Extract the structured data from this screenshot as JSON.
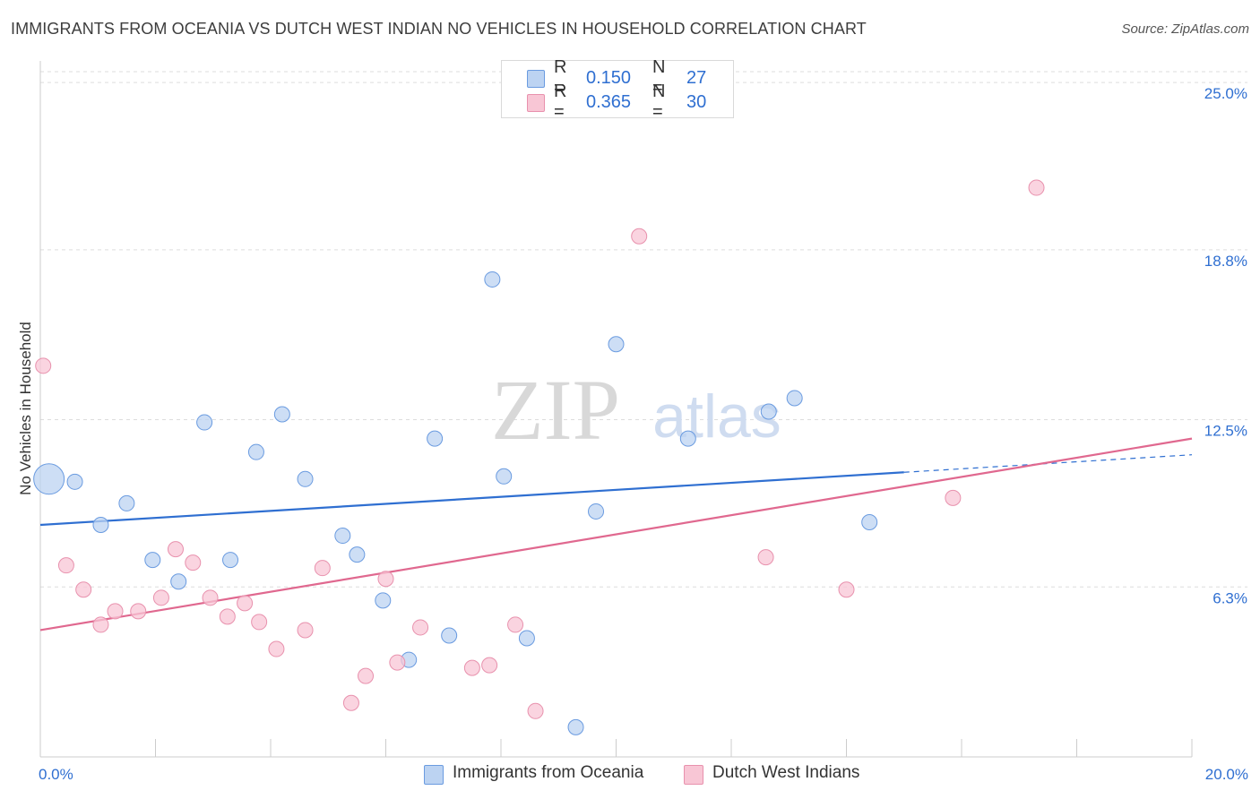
{
  "title": "IMMIGRANTS FROM OCEANIA VS DUTCH WEST INDIAN NO VEHICLES IN HOUSEHOLD CORRELATION CHART",
  "source": "Source: ZipAtlas.com",
  "watermark": {
    "zip": "ZIP",
    "atlas": "atlas"
  },
  "legend": {
    "rows": [
      {
        "r_label": "R =",
        "r_value": "0.150",
        "n_label": "N =",
        "n_value": "27"
      },
      {
        "r_label": "R =",
        "r_value": "0.365",
        "n_label": "N =",
        "n_value": "30"
      }
    ]
  },
  "bottom_legend": {
    "items": [
      {
        "label": "Immigrants from Oceania"
      },
      {
        "label": "Dutch West Indians"
      }
    ]
  },
  "colors": {
    "blue_fill": "#bcd3f2",
    "blue_stroke": "#6a9be0",
    "blue_line": "#2f6fd1",
    "pink_fill": "#f8c6d5",
    "pink_stroke": "#e891ad",
    "pink_line": "#e0688f",
    "axis_label": "#2f6fd1",
    "grid": "#dddddd"
  },
  "chart_data": {
    "type": "scatter",
    "title": "IMMIGRANTS FROM OCEANIA VS DUTCH WEST INDIAN NO VEHICLES IN HOUSEHOLD CORRELATION CHART",
    "xlabel": "",
    "ylabel": "No Vehicles in Household",
    "xlim": [
      0,
      20
    ],
    "ylim": [
      0,
      25.8
    ],
    "x_tick_labels": [
      "0.0%",
      "20.0%"
    ],
    "y_ticks": [
      6.3,
      12.5,
      18.8,
      25.0
    ],
    "y_tick_labels": [
      "6.3%",
      "12.5%",
      "18.8%",
      "25.0%"
    ],
    "grid": true,
    "legend_position": "top-center",
    "series": [
      {
        "name": "Immigrants from Oceania",
        "color": "#bcd3f2",
        "points": [
          {
            "x": 0.15,
            "y": 10.3,
            "size": "large"
          },
          {
            "x": 0.6,
            "y": 10.2
          },
          {
            "x": 1.05,
            "y": 8.6
          },
          {
            "x": 1.5,
            "y": 9.4
          },
          {
            "x": 1.95,
            "y": 7.3
          },
          {
            "x": 2.4,
            "y": 6.5
          },
          {
            "x": 2.85,
            "y": 12.4
          },
          {
            "x": 3.3,
            "y": 7.3
          },
          {
            "x": 3.75,
            "y": 11.3
          },
          {
            "x": 4.2,
            "y": 12.7
          },
          {
            "x": 4.6,
            "y": 10.3
          },
          {
            "x": 5.25,
            "y": 8.2
          },
          {
            "x": 5.5,
            "y": 7.5
          },
          {
            "x": 5.95,
            "y": 5.8
          },
          {
            "x": 6.4,
            "y": 3.6
          },
          {
            "x": 6.85,
            "y": 11.8
          },
          {
            "x": 7.1,
            "y": 4.5
          },
          {
            "x": 7.85,
            "y": 17.7
          },
          {
            "x": 8.05,
            "y": 10.4
          },
          {
            "x": 8.45,
            "y": 4.4
          },
          {
            "x": 9.3,
            "y": 1.1
          },
          {
            "x": 9.65,
            "y": 9.1
          },
          {
            "x": 10.0,
            "y": 15.3
          },
          {
            "x": 11.25,
            "y": 11.8
          },
          {
            "x": 12.65,
            "y": 12.8
          },
          {
            "x": 13.1,
            "y": 13.3
          },
          {
            "x": 14.4,
            "y": 8.7
          }
        ],
        "trend": {
          "x0": 0,
          "y0": 8.6,
          "x1": 15.0,
          "y1": 10.55,
          "dashed_to_x": 20,
          "dashed_to_y": 11.2
        }
      },
      {
        "name": "Dutch West Indians",
        "color": "#f8c6d5",
        "points": [
          {
            "x": 0.05,
            "y": 14.5
          },
          {
            "x": 0.45,
            "y": 7.1
          },
          {
            "x": 0.75,
            "y": 6.2
          },
          {
            "x": 1.05,
            "y": 4.9
          },
          {
            "x": 1.3,
            "y": 5.4
          },
          {
            "x": 1.7,
            "y": 5.4
          },
          {
            "x": 2.1,
            "y": 5.9
          },
          {
            "x": 2.35,
            "y": 7.7
          },
          {
            "x": 2.65,
            "y": 7.2
          },
          {
            "x": 2.95,
            "y": 5.9
          },
          {
            "x": 3.25,
            "y": 5.2
          },
          {
            "x": 3.55,
            "y": 5.7
          },
          {
            "x": 3.8,
            "y": 5.0
          },
          {
            "x": 4.1,
            "y": 4.0
          },
          {
            "x": 4.6,
            "y": 4.7
          },
          {
            "x": 4.9,
            "y": 7.0
          },
          {
            "x": 5.4,
            "y": 2.0
          },
          {
            "x": 5.65,
            "y": 3.0
          },
          {
            "x": 6.0,
            "y": 6.6
          },
          {
            "x": 6.2,
            "y": 3.5
          },
          {
            "x": 6.6,
            "y": 4.8
          },
          {
            "x": 7.5,
            "y": 3.3
          },
          {
            "x": 7.8,
            "y": 3.4
          },
          {
            "x": 8.25,
            "y": 4.9
          },
          {
            "x": 8.6,
            "y": 1.7
          },
          {
            "x": 10.4,
            "y": 19.3
          },
          {
            "x": 12.6,
            "y": 7.4
          },
          {
            "x": 14.0,
            "y": 6.2
          },
          {
            "x": 15.85,
            "y": 9.6
          },
          {
            "x": 17.3,
            "y": 21.1
          }
        ],
        "trend": {
          "x0": 0,
          "y0": 4.7,
          "x1": 20,
          "y1": 11.8
        }
      }
    ]
  }
}
